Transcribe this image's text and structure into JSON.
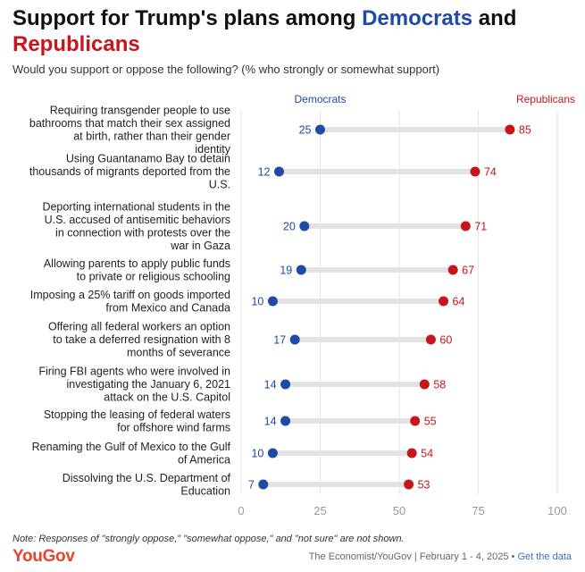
{
  "title": {
    "part1": "Support for Trump's plans among ",
    "democrats": "Democrats",
    "and": " and",
    "republicans": "Republicans"
  },
  "subtitle": "Would you support or oppose the following? (% who strongly or somewhat support)",
  "colors": {
    "democrats": "#1f4aa8",
    "republicans": "#c4161c",
    "bar": "#e2e2e2"
  },
  "chart_data": {
    "type": "dot-range",
    "legend": {
      "democrats": "Democrats",
      "republicans": "Republicans"
    },
    "categories": [
      "Requiring transgender people to use bathrooms that match their sex assigned at birth, rather than their gender identity",
      "Using Guantanamo Bay to detain thousands of migrants deported from the U.S.",
      "Deporting international students in the U.S. accused of antisemitic behaviors in connection with protests over the war in Gaza",
      "Allowing parents to apply public funds to private or religious schooling",
      "Imposing a 25% tariff on goods imported from Mexico and Canada",
      "Offering all federal workers an option to take a deferred resignation with 8 months of severance",
      "Firing FBI agents who were involved in investigating the January 6, 2021 attack on the U.S. Capitol",
      "Stopping the leasing of federal waters for offshore wind farms",
      "Renaming the Gulf of Mexico to the Gulf of America",
      "Dissolving the U.S. Department of Education"
    ],
    "series": [
      {
        "name": "Democrats",
        "values": [
          25,
          12,
          20,
          19,
          10,
          17,
          14,
          14,
          10,
          7
        ]
      },
      {
        "name": "Republicans",
        "values": [
          85,
          74,
          71,
          67,
          64,
          60,
          58,
          55,
          54,
          53
        ]
      }
    ],
    "xlim": [
      0,
      100
    ],
    "xticks": [
      0,
      25,
      50,
      75,
      100
    ]
  },
  "note": "Note: Responses of \"strongly oppose,\" \"somewhat oppose,\" and \"not sure\" are not shown.",
  "footer": {
    "logo": "YouGov",
    "source": "The Economist/YouGov | February 1 - 4, 2025 • ",
    "link": "Get the data"
  }
}
